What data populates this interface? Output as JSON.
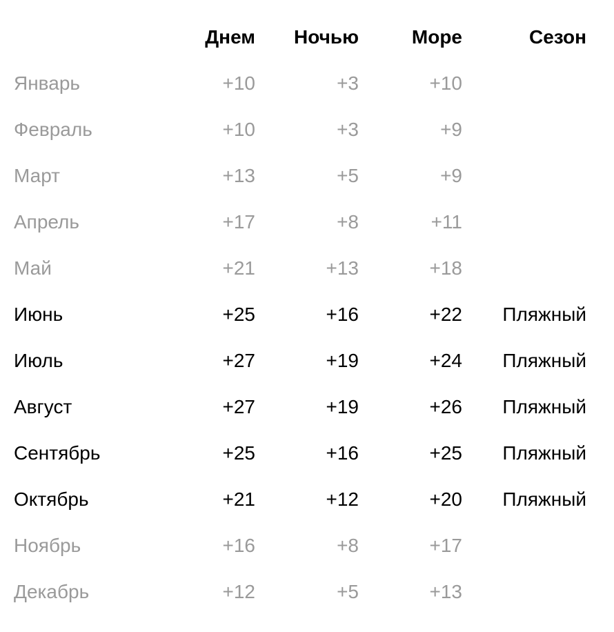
{
  "table": {
    "headers": {
      "month": "",
      "day": "Днем",
      "night": "Ночью",
      "sea": "Море",
      "season": "Сезон"
    },
    "rows": [
      {
        "month": "Январь",
        "day": "+10",
        "night": "+3",
        "sea": "+10",
        "season": "",
        "active": false
      },
      {
        "month": "Февраль",
        "day": "+10",
        "night": "+3",
        "sea": "+9",
        "season": "",
        "active": false
      },
      {
        "month": "Март",
        "day": "+13",
        "night": "+5",
        "sea": "+9",
        "season": "",
        "active": false
      },
      {
        "month": "Апрель",
        "day": "+17",
        "night": "+8",
        "sea": "+11",
        "season": "",
        "active": false
      },
      {
        "month": "Май",
        "day": "+21",
        "night": "+13",
        "sea": "+18",
        "season": "",
        "active": false
      },
      {
        "month": "Июнь",
        "day": "+25",
        "night": "+16",
        "sea": "+22",
        "season": "Пляжный",
        "active": true
      },
      {
        "month": "Июль",
        "day": "+27",
        "night": "+19",
        "sea": "+24",
        "season": "Пляжный",
        "active": true
      },
      {
        "month": "Август",
        "day": "+27",
        "night": "+19",
        "sea": "+26",
        "season": "Пляжный",
        "active": true
      },
      {
        "month": "Сентябрь",
        "day": "+25",
        "night": "+16",
        "sea": "+25",
        "season": "Пляжный",
        "active": true
      },
      {
        "month": "Октябрь",
        "day": "+21",
        "night": "+12",
        "sea": "+20",
        "season": "Пляжный",
        "active": true
      },
      {
        "month": "Ноябрь",
        "day": "+16",
        "night": "+8",
        "sea": "+17",
        "season": "",
        "active": false
      },
      {
        "month": "Декабрь",
        "day": "+12",
        "night": "+5",
        "sea": "+13",
        "season": "",
        "active": false
      }
    ],
    "style": {
      "header_fontweight": 700,
      "body_fontsize": 28,
      "muted_color": "#9a9a9a",
      "strong_color": "#000000",
      "background_color": "#ffffff"
    }
  }
}
